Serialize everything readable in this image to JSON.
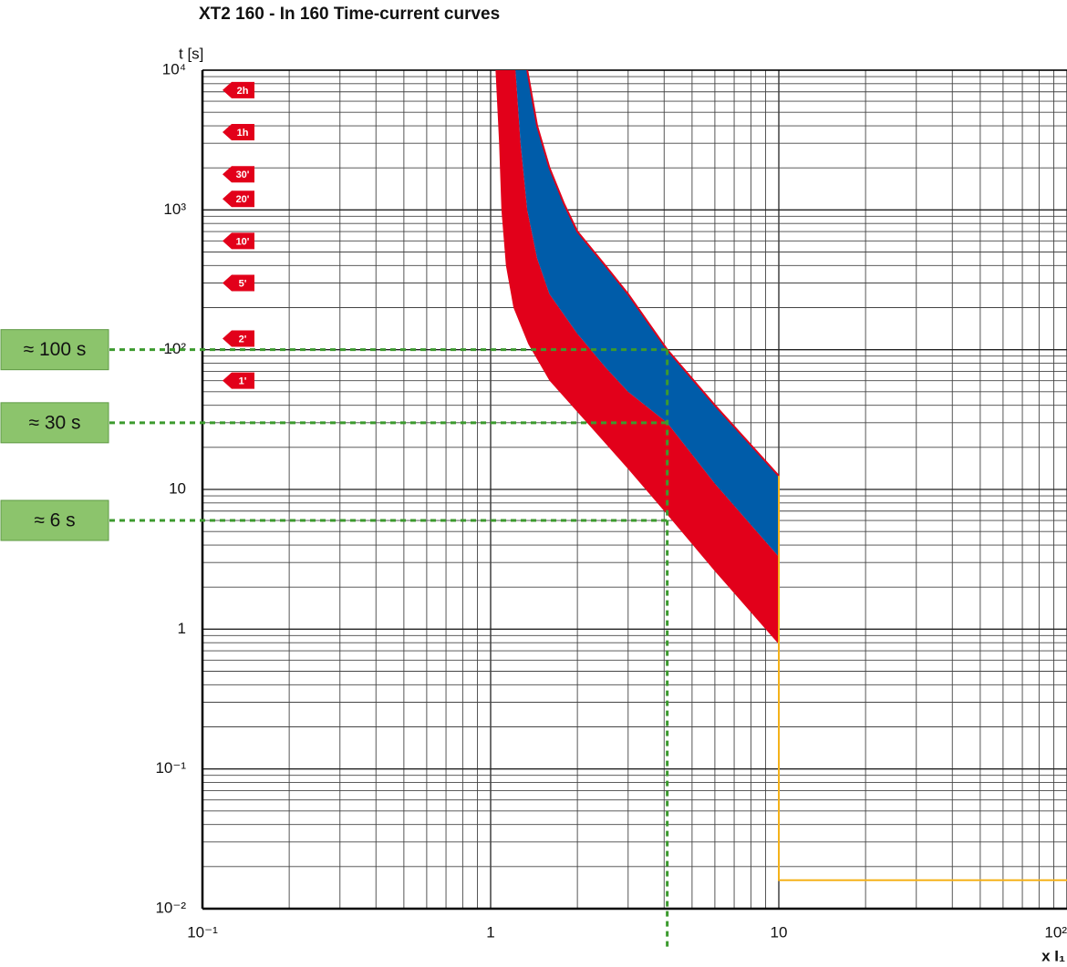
{
  "chart_data": {
    "type": "band",
    "title": "XT2 160 - In 160 Time-current curves",
    "y_label": "t [s]",
    "x_label": "x I₁",
    "xscale": "log",
    "yscale": "log",
    "grid": true,
    "xlim": [
      0.1,
      100
    ],
    "ylim": [
      0.01,
      10000
    ],
    "xticks": [
      {
        "value": 0.1,
        "label": "10⁻¹"
      },
      1,
      10,
      {
        "value": 100,
        "label": "10²"
      }
    ],
    "yticks": [
      {
        "value": 0.01,
        "label": "10⁻²"
      },
      {
        "value": 0.1,
        "label": "10⁻¹"
      },
      1,
      10,
      {
        "value": 100,
        "label": "10²"
      },
      {
        "value": 1000,
        "label": "10³"
      },
      {
        "value": 10000,
        "label": "10⁴"
      }
    ],
    "bands": [
      {
        "color": "#e2001a",
        "lower_x": [
          1.04,
          1.07,
          1.09,
          1.13,
          1.2,
          1.35,
          1.6,
          2.1,
          3,
          4.1,
          6,
          10
        ],
        "lower_t": [
          10000,
          3000,
          1000,
          400,
          200,
          110,
          60,
          32,
          14,
          6.6,
          2.6,
          0.78
        ],
        "upper_x": [
          1.22,
          1.27,
          1.34,
          1.45,
          1.6,
          2,
          2.5,
          3,
          4.1,
          6,
          10
        ],
        "upper_t": [
          10000,
          3000,
          1000,
          450,
          250,
          130,
          75,
          50,
          30,
          11,
          3.3
        ]
      },
      {
        "color": "#005ca9",
        "stroke": "#e2001a",
        "lower_x": [
          1.22,
          1.27,
          1.34,
          1.45,
          1.6,
          2,
          2.5,
          3,
          4.1,
          6,
          10
        ],
        "lower_t": [
          10000,
          3000,
          1000,
          450,
          250,
          130,
          75,
          50,
          30,
          11,
          3.3
        ],
        "upper_x": [
          1.34,
          1.45,
          1.6,
          1.8,
          2,
          2.5,
          3,
          4.1,
          6,
          10
        ],
        "upper_t": [
          10000,
          4000,
          2000,
          1100,
          700,
          400,
          250,
          100,
          40,
          12.5
        ]
      }
    ],
    "lines": [
      {
        "color": "#f5b21a",
        "x": [
          10,
          10,
          100
        ],
        "values": [
          12.5,
          0.016,
          0.016
        ]
      }
    ],
    "time_markers": [
      {
        "value": 7200,
        "label": "2h"
      },
      {
        "value": 3600,
        "label": "1h"
      },
      {
        "value": 1800,
        "label": "30'"
      },
      {
        "value": 1200,
        "label": "20'"
      },
      {
        "value": 600,
        "label": "10'"
      },
      {
        "value": 300,
        "label": "5'"
      },
      {
        "value": 120,
        "label": "2'"
      },
      {
        "value": 60,
        "label": "1'"
      }
    ],
    "marker_color": "#e2001a",
    "readings": {
      "x": 4.1,
      "color": "#3c9a2e",
      "box_color": "#8cc46c",
      "values": [
        100,
        30,
        6
      ],
      "value_labels": [
        "≈ 100 s",
        "≈ 30 s",
        "≈ 6 s"
      ]
    }
  }
}
